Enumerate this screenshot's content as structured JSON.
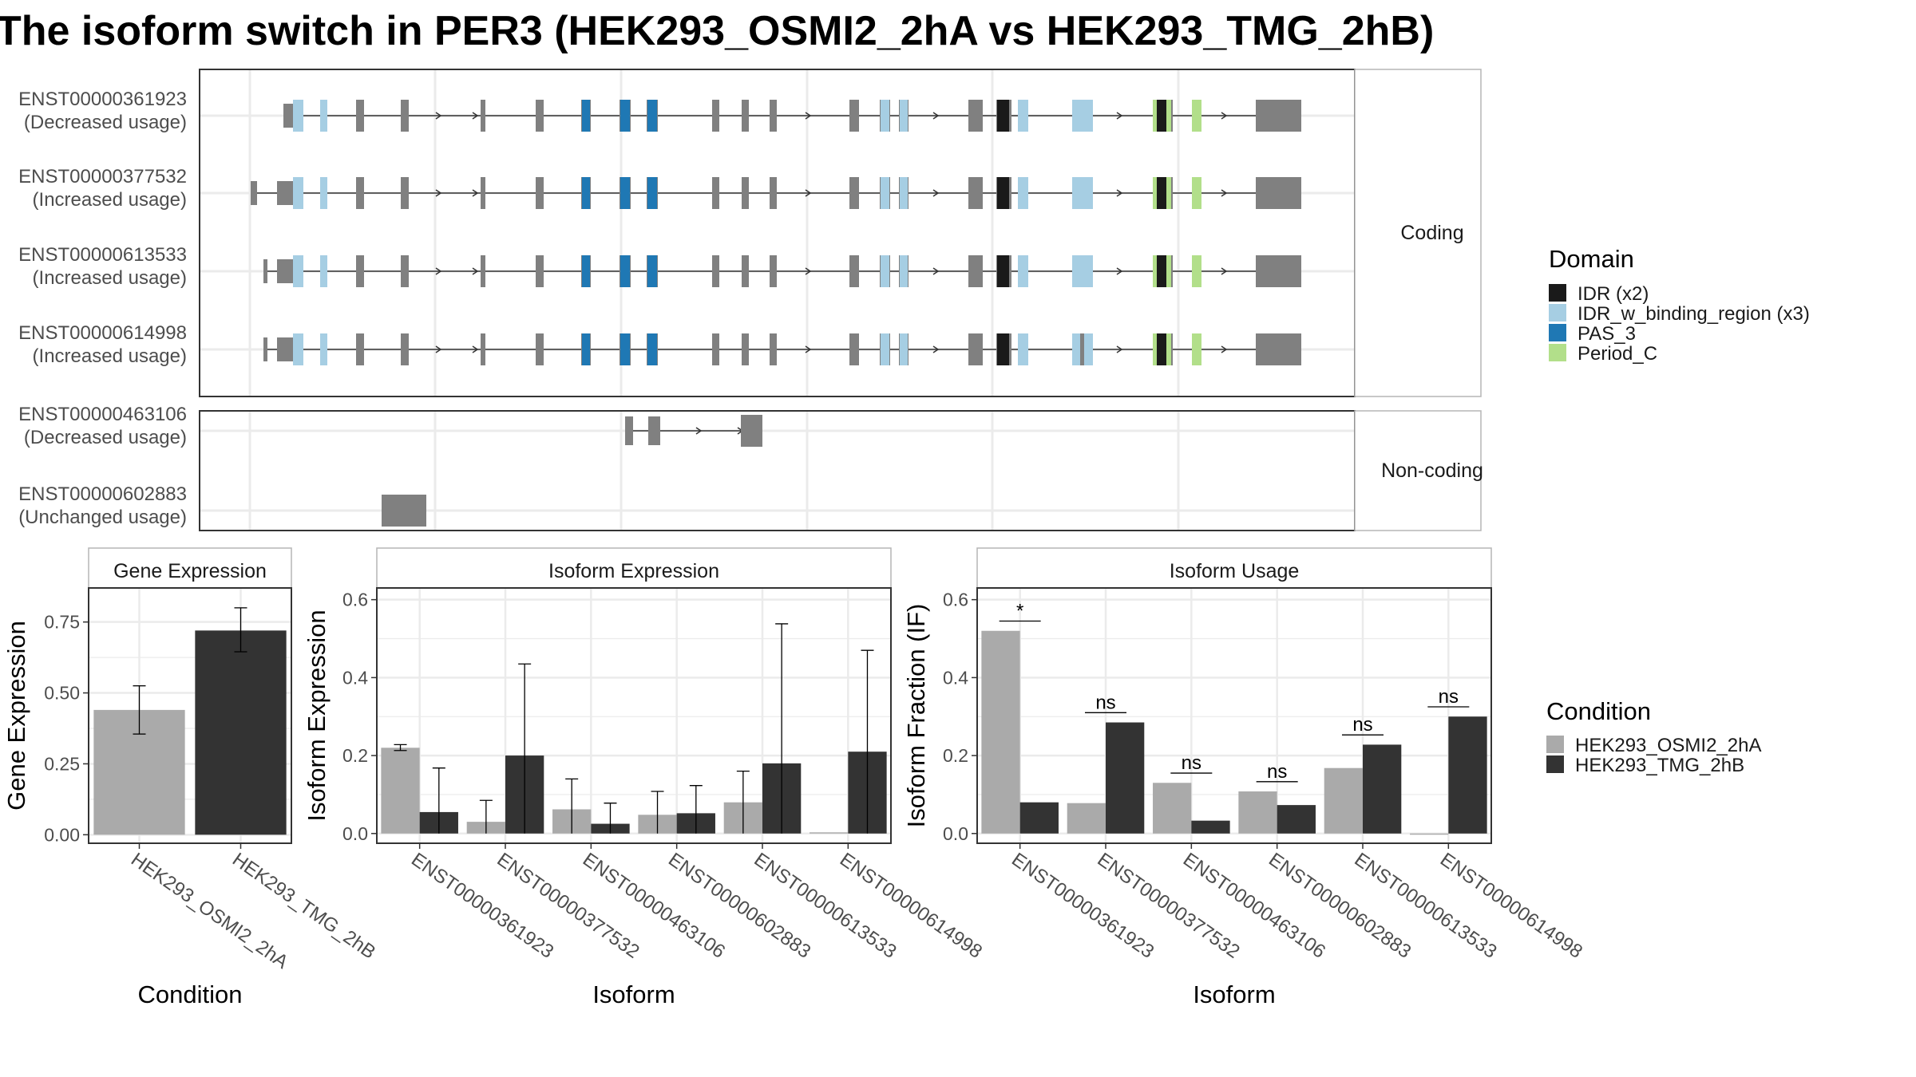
{
  "title": "The isoform switch in PER3 (HEK293_OSMI2_2hA vs HEK293_TMG_2hB)",
  "colors": {
    "exon": "#808080",
    "line": "#333333",
    "panel_border": "#333333",
    "grid": "#ebebeb",
    "strip_border": "#b5b5b5",
    "condition_a": "#aaaaaa",
    "condition_b": "#333333"
  },
  "transcript_panel": {
    "strips": [
      "Coding",
      "Non-coding"
    ],
    "transcripts": [
      {
        "id": "ENST00000361923",
        "usage": "(Decreased usage)",
        "group": 0
      },
      {
        "id": "ENST00000377532",
        "usage": "(Increased usage)",
        "group": 0
      },
      {
        "id": "ENST00000613533",
        "usage": "(Increased usage)",
        "group": 0
      },
      {
        "id": "ENST00000614998",
        "usage": "(Increased usage)",
        "group": 0
      },
      {
        "id": "ENST00000463106",
        "usage": "(Decreased usage)",
        "group": 1
      },
      {
        "id": "ENST00000602883",
        "usage": "(Unchanged usage)",
        "group": 1
      }
    ],
    "domain_legend": {
      "title": "Domain",
      "items": [
        {
          "label": "IDR (x2)",
          "color": "#1a1a1a"
        },
        {
          "label": "IDR_w_binding_region (x3)",
          "color": "#a6cee3"
        },
        {
          "label": "PAS_3",
          "color": "#1f78b4"
        },
        {
          "label": "Period_C",
          "color": "#b2df8a"
        }
      ]
    }
  },
  "condition_legend": {
    "title": "Condition",
    "items": [
      "HEK293_OSMI2_2hA",
      "HEK293_TMG_2hB"
    ]
  },
  "chart_data": [
    {
      "type": "bar",
      "title": "Gene Expression",
      "xlabel": "Condition",
      "ylabel": "Gene Expression",
      "categories": [
        "HEK293_OSMI2_2hA",
        "HEK293_TMG_2hB"
      ],
      "values": [
        0.44,
        0.72
      ],
      "error_low": [
        0.355,
        0.645
      ],
      "error_high": [
        0.525,
        0.8
      ],
      "ylim": [
        -0.03,
        0.87
      ],
      "yticks": [
        0.0,
        0.25,
        0.5,
        0.75
      ],
      "ytick_labels": [
        "0.00",
        "0.25",
        "0.50",
        "0.75"
      ]
    },
    {
      "type": "bar",
      "title": "Isoform Expression",
      "xlabel": "Isoform",
      "ylabel": "Isoform Expression",
      "categories": [
        "ENST00000361923",
        "ENST00000377532",
        "ENST00000463106",
        "ENST00000602883",
        "ENST00000613533",
        "ENST00000614998"
      ],
      "series": [
        {
          "name": "HEK293_OSMI2_2hA",
          "values": [
            0.22,
            0.03,
            0.062,
            0.048,
            0.08,
            0.003
          ],
          "error_low": [
            0.213,
            null,
            null,
            null,
            null,
            null
          ],
          "error_high": [
            0.228,
            0.085,
            0.14,
            0.108,
            0.16,
            null
          ]
        },
        {
          "name": "HEK293_TMG_2hB",
          "values": [
            0.055,
            0.2,
            0.025,
            0.052,
            0.18,
            0.21
          ],
          "error_low": [
            null,
            null,
            null,
            null,
            null,
            null
          ],
          "error_high": [
            0.168,
            0.435,
            0.078,
            0.123,
            0.538,
            0.47
          ]
        }
      ],
      "ylim": [
        -0.025,
        0.63
      ],
      "yticks": [
        0.0,
        0.2,
        0.4,
        0.6
      ],
      "ytick_labels": [
        "0.0",
        "0.2",
        "0.4",
        "0.6"
      ]
    },
    {
      "type": "bar",
      "title": "Isoform Usage",
      "xlabel": "Isoform",
      "ylabel": "Isoform Fraction (IF)",
      "categories": [
        "ENST00000361923",
        "ENST00000377532",
        "ENST00000463106",
        "ENST00000602883",
        "ENST00000613533",
        "ENST00000614998"
      ],
      "series": [
        {
          "name": "HEK293_OSMI2_2hA",
          "values": [
            0.52,
            0.078,
            0.13,
            0.108,
            0.168,
            0.0
          ]
        },
        {
          "name": "HEK293_TMG_2hB",
          "values": [
            0.08,
            0.285,
            0.033,
            0.073,
            0.228,
            0.3
          ]
        }
      ],
      "significance": [
        "*",
        "ns",
        "ns",
        "ns",
        "ns",
        "ns"
      ],
      "sig_level": [
        0.545,
        0.31,
        0.155,
        0.133,
        0.253,
        0.325
      ],
      "ylim": [
        -0.025,
        0.63
      ],
      "yticks": [
        0.0,
        0.2,
        0.4,
        0.6
      ],
      "ytick_labels": [
        "0.0",
        "0.2",
        "0.4",
        "0.6"
      ]
    }
  ]
}
